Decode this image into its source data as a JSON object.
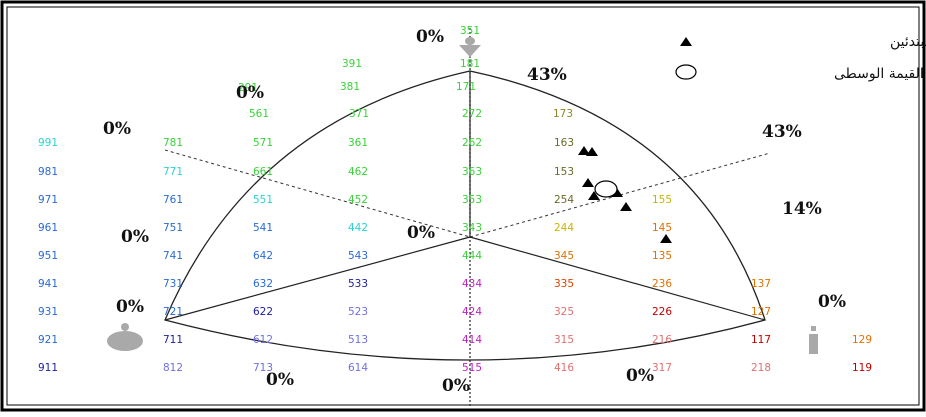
{
  "legend": {
    "sample_label": "عينة البحث مبتدئين",
    "median_label": "القيمة الوسطى"
  },
  "percentages": {
    "top_center": "0%",
    "top_right_vertex": "43%",
    "upper_left": "0%",
    "upper_left_outer": "0%",
    "right_upper": "43%",
    "right_mid": "14%",
    "left_mid": "0%",
    "center": "0%",
    "left_bottom": "0%",
    "right_bottom": "0%",
    "bottom_left": "0%",
    "bottom_center": "0%",
    "bottom_right": "0%"
  },
  "colors": {
    "frame": "#000000",
    "triangle": "#222222",
    "dotted": "#333333",
    "marker_gray": "#a9a9a9"
  },
  "codes": [
    {
      "t": "351",
      "c": "#39d239"
    },
    {
      "t": "391",
      "c": "#39d239"
    },
    {
      "t": "181",
      "c": "#39d239"
    },
    {
      "t": "291",
      "c": "#39d239"
    },
    {
      "t": "381",
      "c": "#39d239"
    },
    {
      "t": "171",
      "c": "#39d239"
    },
    {
      "t": "561",
      "c": "#39d239"
    },
    {
      "t": "371",
      "c": "#39d239"
    },
    {
      "t": "272",
      "c": "#39d239"
    },
    {
      "t": "173",
      "c": "#8a8a2a"
    },
    {
      "t": "991",
      "c": "#2ad4d4"
    },
    {
      "t": "781",
      "c": "#39d239"
    },
    {
      "t": "571",
      "c": "#39d239"
    },
    {
      "t": "361",
      "c": "#39d239"
    },
    {
      "t": "262",
      "c": "#39d239"
    },
    {
      "t": "163",
      "c": "#6a6a2a"
    },
    {
      "t": "981",
      "c": "#2a6ad4"
    },
    {
      "t": "771",
      "c": "#2ad4d4"
    },
    {
      "t": "661",
      "c": "#39d239"
    },
    {
      "t": "462",
      "c": "#39d239"
    },
    {
      "t": "363",
      "c": "#39d239"
    },
    {
      "t": "153",
      "c": "#6a6a2a"
    },
    {
      "t": "971",
      "c": "#2a6ad4"
    },
    {
      "t": "761",
      "c": "#2a6ad4"
    },
    {
      "t": "551",
      "c": "#2ad4d4"
    },
    {
      "t": "452",
      "c": "#39d239"
    },
    {
      "t": "353",
      "c": "#39d239"
    },
    {
      "t": "254",
      "c": "#6a6a2a"
    },
    {
      "t": "155",
      "c": "#c8b400"
    },
    {
      "t": "961",
      "c": "#2a6ad4"
    },
    {
      "t": "751",
      "c": "#2a6ad4"
    },
    {
      "t": "541",
      "c": "#2a6ad4"
    },
    {
      "t": "442",
      "c": "#2ad4d4"
    },
    {
      "t": "343",
      "c": "#39d239"
    },
    {
      "t": "244",
      "c": "#c8b400"
    },
    {
      "t": "145",
      "c": "#e07000"
    },
    {
      "t": "951",
      "c": "#2a6ad4"
    },
    {
      "t": "741",
      "c": "#2a6ad4"
    },
    {
      "t": "642",
      "c": "#2a6ad4"
    },
    {
      "t": "543",
      "c": "#2a6ad4"
    },
    {
      "t": "444",
      "c": "#39d239"
    },
    {
      "t": "345",
      "c": "#e07000"
    },
    {
      "t": "135",
      "c": "#e07000"
    },
    {
      "t": "941",
      "c": "#2a6ad4"
    },
    {
      "t": "731",
      "c": "#2a6ad4"
    },
    {
      "t": "632",
      "c": "#2a6ad4"
    },
    {
      "t": "533",
      "c": "#2020a0"
    },
    {
      "t": "434",
      "c": "#c020c0"
    },
    {
      "t": "335",
      "c": "#e04000"
    },
    {
      "t": "236",
      "c": "#e07000"
    },
    {
      "t": "137",
      "c": "#e07000"
    },
    {
      "t": "931",
      "c": "#2a6ad4"
    },
    {
      "t": "721",
      "c": "#2a6ad4"
    },
    {
      "t": "622",
      "c": "#2020a0"
    },
    {
      "t": "523",
      "c": "#7070e0"
    },
    {
      "t": "424",
      "c": "#c020c0"
    },
    {
      "t": "325",
      "c": "#e07070"
    },
    {
      "t": "226",
      "c": "#c00000"
    },
    {
      "t": "127",
      "c": "#e07000"
    },
    {
      "t": "921",
      "c": "#2a6ad4"
    },
    {
      "t": "711",
      "c": "#2020a0"
    },
    {
      "t": "612",
      "c": "#7070e0"
    },
    {
      "t": "513",
      "c": "#7070e0"
    },
    {
      "t": "414",
      "c": "#c020c0"
    },
    {
      "t": "315",
      "c": "#e07070"
    },
    {
      "t": "216",
      "c": "#e07070"
    },
    {
      "t": "117",
      "c": "#c00000"
    },
    {
      "t": "129",
      "c": "#e07000"
    },
    {
      "t": "911",
      "c": "#2020a0"
    },
    {
      "t": "812",
      "c": "#7070e0"
    },
    {
      "t": "713",
      "c": "#7070e0"
    },
    {
      "t": "614",
      "c": "#7070e0"
    },
    {
      "t": "515",
      "c": "#c020c0"
    },
    {
      "t": "416",
      "c": "#e07070"
    },
    {
      "t": "317",
      "c": "#e07070"
    },
    {
      "t": "218",
      "c": "#e07070"
    },
    {
      "t": "119",
      "c": "#c00000"
    }
  ]
}
